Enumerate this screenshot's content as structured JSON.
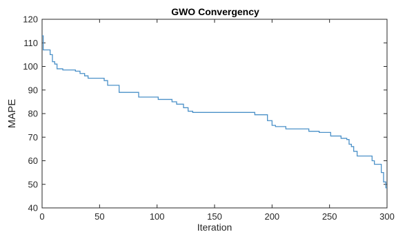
{
  "chart_data": {
    "type": "line",
    "title": "GWO Convergency",
    "xlabel": "Iteration",
    "ylabel": "MAPE",
    "xlim": [
      0,
      300
    ],
    "ylim": [
      40,
      120
    ],
    "xticks": [
      0,
      50,
      100,
      150,
      200,
      250,
      300
    ],
    "yticks": [
      40,
      50,
      60,
      70,
      80,
      90,
      100,
      110,
      120
    ],
    "grid": false,
    "line_color": "#4a90c8",
    "series": [
      {
        "style": "stairs",
        "x": [
          0,
          1,
          2,
          7,
          9,
          11,
          13,
          16,
          18,
          29,
          33,
          37,
          40,
          54,
          57,
          67,
          84,
          101,
          113,
          117,
          123,
          127,
          131,
          185,
          196,
          200,
          203,
          212,
          232,
          241,
          251,
          260,
          265,
          267,
          269,
          271,
          274,
          287,
          289,
          295,
          297,
          299,
          300
        ],
        "y": [
          113,
          107,
          107,
          105,
          102,
          101,
          99,
          99,
          98.5,
          98,
          97,
          96,
          95,
          94,
          92,
          89,
          87,
          86,
          85,
          84,
          82.5,
          81,
          80.5,
          79.5,
          77,
          75,
          74.5,
          73.5,
          72.5,
          72,
          70.5,
          69.5,
          69,
          67,
          66,
          64,
          62,
          60,
          58.5,
          55,
          51,
          48.5,
          48.5
        ]
      }
    ]
  }
}
